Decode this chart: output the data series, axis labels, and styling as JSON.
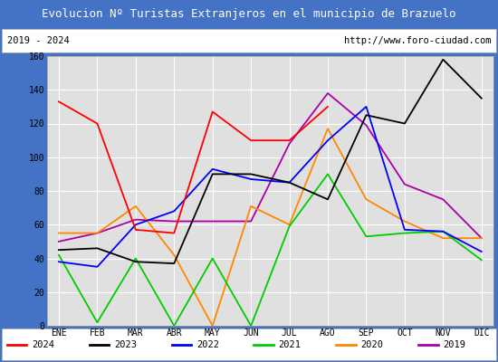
{
  "title": "Evolucion Nº Turistas Extranjeros en el municipio de Brazuelo",
  "subtitle_left": "2019 - 2024",
  "subtitle_right": "http://www.foro-ciudad.com",
  "months": [
    "ENE",
    "FEB",
    "MAR",
    "ABR",
    "MAY",
    "JUN",
    "JUL",
    "AGO",
    "SEP",
    "OCT",
    "NOV",
    "DIC"
  ],
  "series": {
    "2024": [
      133,
      120,
      57,
      55,
      127,
      110,
      110,
      130,
      null,
      null,
      null,
      null
    ],
    "2023": [
      45,
      46,
      38,
      37,
      90,
      90,
      85,
      75,
      125,
      120,
      158,
      135
    ],
    "2022": [
      38,
      35,
      60,
      68,
      93,
      87,
      85,
      110,
      130,
      57,
      56,
      44
    ],
    "2021": [
      42,
      2,
      40,
      0,
      40,
      0,
      59,
      90,
      53,
      55,
      56,
      39
    ],
    "2020": [
      55,
      55,
      71,
      42,
      0,
      71,
      60,
      117,
      75,
      62,
      52,
      52
    ],
    "2019": [
      50,
      55,
      63,
      62,
      62,
      62,
      108,
      138,
      119,
      84,
      75,
      52
    ]
  },
  "colors": {
    "2024": "#ff0000",
    "2023": "#000000",
    "2022": "#0000ff",
    "2021": "#00cc00",
    "2020": "#ff8800",
    "2019": "#aa00aa"
  },
  "ylim": [
    0,
    160
  ],
  "yticks": [
    0,
    20,
    40,
    60,
    80,
    100,
    120,
    140,
    160
  ],
  "title_bg": "#4472c4",
  "title_color": "#ffffff",
  "plot_bg": "#e0e0e0",
  "grid_color": "#ffffff",
  "border_color": "#4472c4",
  "title_fontsize": 9,
  "tick_fontsize": 7,
  "legend_fontsize": 7.5
}
